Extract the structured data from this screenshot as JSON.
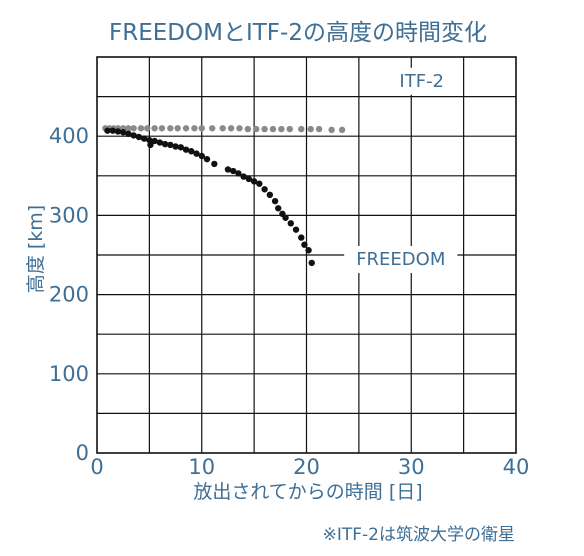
{
  "chart_data": {
    "type": "scatter",
    "title": "FREEDOMとITF-2の高度の時間変化",
    "xlabel": "放出されてからの時間 [日]",
    "ylabel": "高度 [km]",
    "xlim": [
      0,
      40
    ],
    "ylim": [
      0,
      500
    ],
    "x_ticks": [
      0,
      10,
      20,
      30,
      40
    ],
    "y_ticks": [
      0,
      100,
      200,
      300,
      400
    ],
    "grid": true,
    "note": "※ITF-2は筑波大学の衛星",
    "series": [
      {
        "name": "ITF-2",
        "color": "#8a8a8a",
        "x": [
          0.8,
          1.2,
          1.6,
          2.0,
          2.5,
          3.0,
          3.5,
          4.2,
          4.8,
          5.5,
          6.2,
          7.0,
          7.7,
          8.5,
          9.3,
          10.0,
          11.0,
          12.0,
          12.8,
          13.6,
          14.4,
          15.2,
          16.0,
          16.8,
          17.6,
          18.4,
          19.5,
          20.4,
          21.2,
          22.4,
          23.4
        ],
        "y": [
          410,
          410,
          410,
          410,
          410,
          410,
          410,
          410,
          410,
          410,
          410,
          410,
          410,
          410,
          410,
          410,
          410,
          410,
          410,
          410,
          409,
          409,
          409,
          409,
          409,
          409,
          409,
          409,
          409,
          408,
          408
        ]
      },
      {
        "name": "FREEDOM",
        "color": "#111111",
        "x": [
          1.0,
          1.5,
          2.0,
          2.5,
          3.0,
          3.5,
          4.0,
          4.5,
          5.0,
          5.1,
          5.5,
          6.0,
          6.5,
          7.0,
          7.5,
          8.0,
          8.5,
          9.0,
          9.5,
          10.0,
          10.5,
          11.2,
          12.5,
          13.0,
          13.5,
          14.0,
          14.5,
          15.0,
          15.5,
          16.0,
          16.5,
          17.0,
          17.3,
          17.7,
          18.0,
          18.5,
          19.0,
          19.5,
          19.8,
          20.2,
          20.5
        ],
        "y": [
          407,
          407,
          406,
          405,
          403,
          401,
          399,
          397,
          395,
          389,
          394,
          392,
          390,
          389,
          387,
          386,
          383,
          381,
          378,
          375,
          371,
          365,
          358,
          356,
          353,
          349,
          346,
          343,
          340,
          333,
          326,
          318,
          309,
          302,
          297,
          290,
          282,
          272,
          263,
          256,
          240
        ]
      }
    ]
  }
}
